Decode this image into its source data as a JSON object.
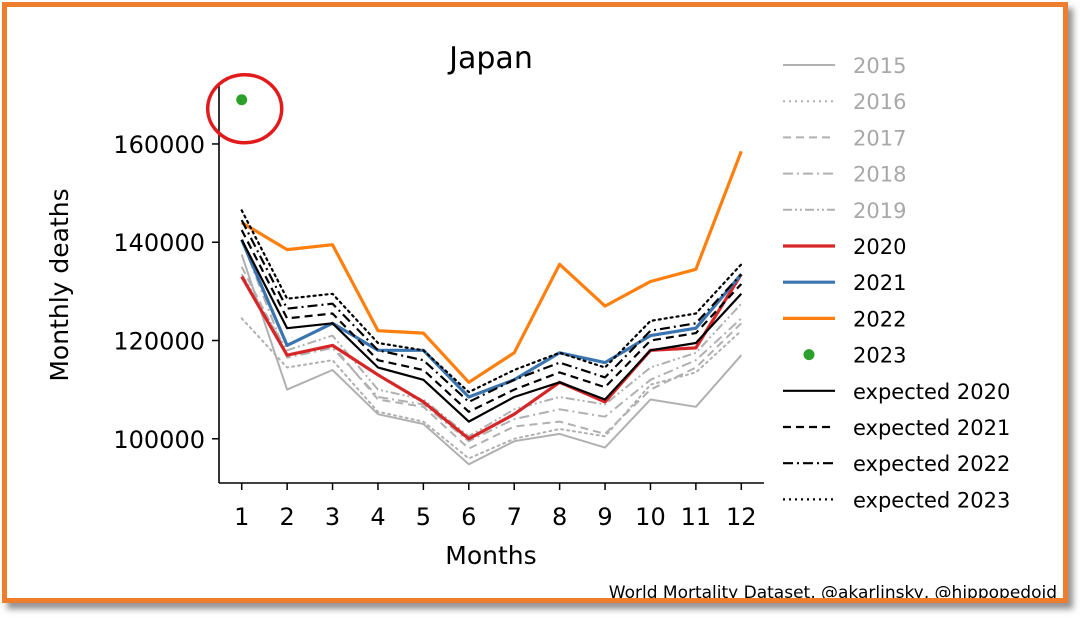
{
  "chart_data": {
    "type": "line",
    "title": "Japan",
    "xlabel": "Months",
    "ylabel": "Monthly deaths",
    "x": [
      1,
      2,
      3,
      4,
      5,
      6,
      7,
      8,
      9,
      10,
      11,
      12
    ],
    "x_tick_labels": [
      "1",
      "2",
      "3",
      "4",
      "5",
      "6",
      "7",
      "8",
      "9",
      "10",
      "11",
      "12"
    ],
    "y_ticks": [
      100000,
      120000,
      140000,
      160000
    ],
    "y_tick_labels": [
      "100000",
      "120000",
      "140000",
      "160000"
    ],
    "xlim": [
      0.5,
      12.5
    ],
    "ylim": [
      91000,
      172000
    ],
    "grid": false,
    "legend_position": "right-outside",
    "series": [
      {
        "name": "2015",
        "color": "#b0b0b0",
        "style": "solid",
        "width": 2,
        "values": [
          137500,
          110000,
          114000,
          105000,
          103000,
          94800,
          99500,
          101000,
          98200,
          108000,
          106500,
          117000
        ]
      },
      {
        "name": "2016",
        "color": "#b0b0b0",
        "style": "dotted",
        "width": 2,
        "values": [
          124500,
          114500,
          116000,
          105500,
          103500,
          96000,
          100000,
          102000,
          100500,
          111000,
          113500,
          122000
        ]
      },
      {
        "name": "2017",
        "color": "#b0b0b0",
        "style": "dashed",
        "width": 2,
        "values": [
          135000,
          117000,
          119000,
          108000,
          106500,
          98000,
          102500,
          103500,
          101000,
          110000,
          114500,
          123500
        ]
      },
      {
        "name": "2018",
        "color": "#b0b0b0",
        "style": "dashdot",
        "width": 2,
        "values": [
          140500,
          116500,
          118500,
          108500,
          107000,
          99500,
          104000,
          106000,
          104500,
          112000,
          116000,
          124500
        ]
      },
      {
        "name": "2019",
        "color": "#b0b0b0",
        "style": "dashdotdot",
        "width": 2,
        "values": [
          133500,
          118000,
          121000,
          110000,
          108000,
          100500,
          106000,
          108500,
          107000,
          114500,
          117500,
          127500
        ]
      },
      {
        "name": "2020",
        "color": "#d62728",
        "style": "solid",
        "width": 3.2,
        "values": [
          133000,
          117000,
          119000,
          113000,
          107500,
          100000,
          105000,
          111500,
          107500,
          118000,
          118500,
          133500
        ]
      },
      {
        "name": "2021",
        "color": "#3b75af",
        "style": "solid",
        "width": 3.2,
        "values": [
          140500,
          119000,
          123500,
          118000,
          118000,
          108500,
          112000,
          117500,
          115500,
          121000,
          122500,
          133500
        ]
      },
      {
        "name": "2022",
        "color": "#ff7f0e",
        "style": "solid",
        "width": 3.2,
        "values": [
          144000,
          138500,
          139500,
          122000,
          121500,
          111500,
          117500,
          135500,
          127000,
          132000,
          134500,
          158500
        ]
      },
      {
        "name": "2023",
        "color": "#2ca02c",
        "style": "marker",
        "width": 0,
        "values": [
          169000,
          null,
          null,
          null,
          null,
          null,
          null,
          null,
          null,
          null,
          null,
          null
        ]
      },
      {
        "name": "expected 2020",
        "color": "#000000",
        "style": "solid",
        "width": 2.2,
        "values": [
          140500,
          122500,
          123500,
          114500,
          112000,
          103500,
          108500,
          111500,
          108000,
          118000,
          119500,
          129500
        ]
      },
      {
        "name": "expected 2021",
        "color": "#000000",
        "style": "dashed",
        "width": 2.2,
        "values": [
          142500,
          124500,
          125500,
          116000,
          114000,
          105500,
          110000,
          113500,
          110500,
          120000,
          121500,
          131500
        ]
      },
      {
        "name": "expected 2022",
        "color": "#000000",
        "style": "dashdot",
        "width": 2.2,
        "values": [
          144500,
          126500,
          127500,
          118000,
          116000,
          107500,
          112000,
          115500,
          112500,
          122000,
          123500,
          133500
        ]
      },
      {
        "name": "expected 2023",
        "color": "#000000",
        "style": "dotted",
        "width": 2.2,
        "values": [
          146500,
          128500,
          129500,
          119500,
          118000,
          109500,
          114000,
          117500,
          114500,
          124000,
          125500,
          135500
        ]
      }
    ],
    "legend_text_colors": {
      "past": "#a8a8a8",
      "current": "#000000"
    },
    "annotation": {
      "shape": "ellipse",
      "color": "#e31a1c",
      "target_series": "2023",
      "target_x": 1
    }
  },
  "credit": "World Mortality Dataset, @akarlinsky, @hippopedoid",
  "frame": {
    "border_color": "#ee7d2e"
  }
}
